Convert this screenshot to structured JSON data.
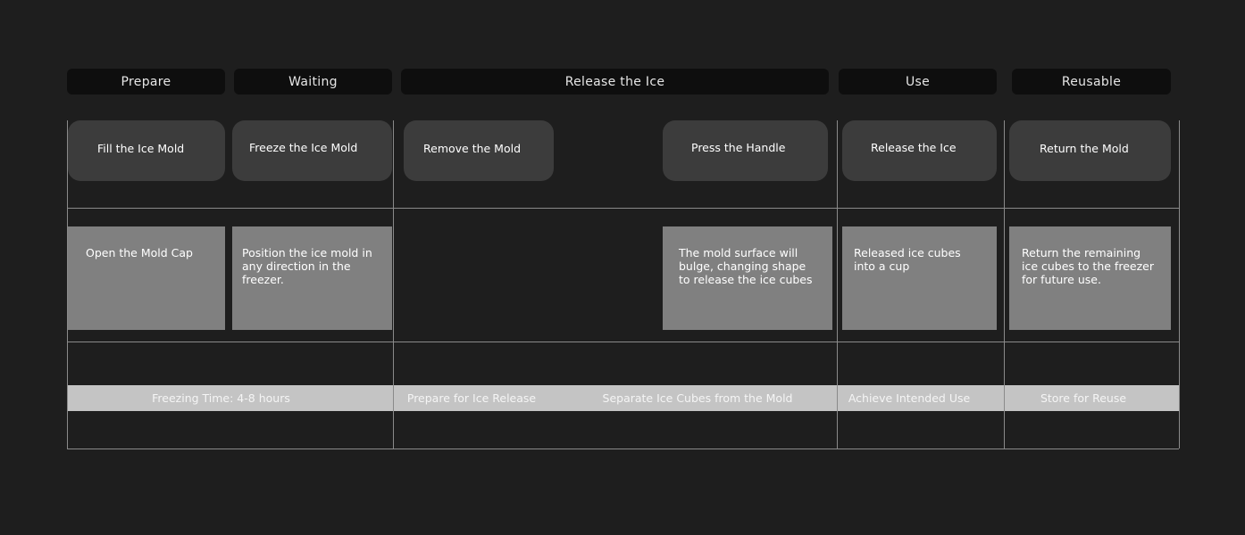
{
  "phases": [
    "Prepare",
    "Waiting",
    "Release the Ice",
    "Use",
    "Reusable"
  ],
  "actions": [
    "Fill the Ice Mold",
    "Freeze the Ice Mold",
    "Remove the Mold",
    "Press the Handle",
    "Release the Ice",
    "Return the Mold"
  ],
  "notes": [
    "Open the Mold Cap",
    "Position the ice mold in any direction in the freezer.",
    "The mold surface will bulge, changing shape to release the ice cubes",
    "Released ice cubes into a cup",
    "Return the remaining ice cubes to the freezer for future use."
  ],
  "goals": [
    "Freezing Time: 4-8 hours",
    "Prepare for Ice Release",
    "Separate Ice Cubes from the Mold",
    "Achieve Intended Use",
    "Store for Reuse"
  ]
}
